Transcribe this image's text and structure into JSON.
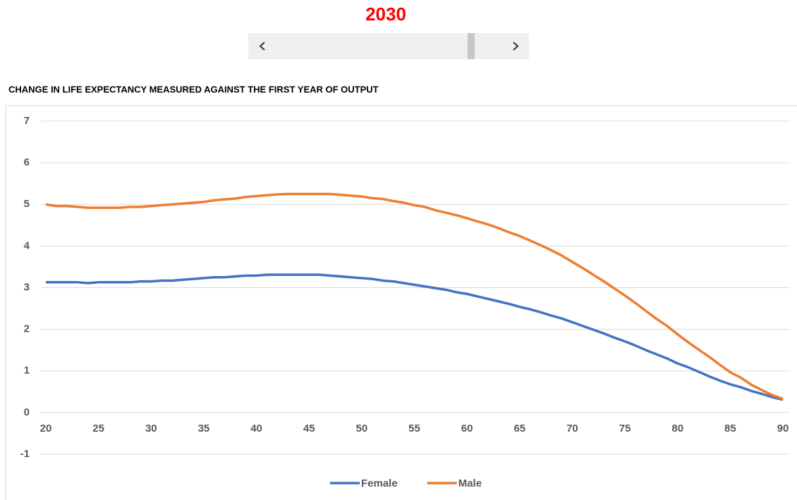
{
  "slider": {
    "label": "2030"
  },
  "chart_data": {
    "type": "line",
    "title": "CHANGE IN LIFE EXPECTANCY MEASURED AGAINST THE FIRST YEAR OF OUTPUT",
    "x": [
      20,
      21,
      22,
      23,
      24,
      25,
      26,
      27,
      28,
      29,
      30,
      31,
      32,
      33,
      34,
      35,
      36,
      37,
      38,
      39,
      40,
      41,
      42,
      43,
      44,
      45,
      46,
      47,
      48,
      49,
      50,
      51,
      52,
      53,
      54,
      55,
      56,
      57,
      58,
      59,
      60,
      61,
      62,
      63,
      64,
      65,
      66,
      67,
      68,
      69,
      70,
      71,
      72,
      73,
      74,
      75,
      76,
      77,
      78,
      79,
      80,
      81,
      82,
      83,
      84,
      85,
      86,
      87,
      88,
      89,
      90
    ],
    "series": [
      {
        "name": "Female",
        "color": "#4472c4",
        "values": [
          3.13,
          3.13,
          3.13,
          3.13,
          3.11,
          3.13,
          3.13,
          3.13,
          3.13,
          3.15,
          3.15,
          3.17,
          3.17,
          3.19,
          3.21,
          3.23,
          3.25,
          3.25,
          3.27,
          3.29,
          3.29,
          3.31,
          3.31,
          3.31,
          3.31,
          3.31,
          3.31,
          3.29,
          3.27,
          3.25,
          3.23,
          3.21,
          3.17,
          3.15,
          3.11,
          3.07,
          3.03,
          2.99,
          2.95,
          2.89,
          2.85,
          2.79,
          2.73,
          2.67,
          2.61,
          2.54,
          2.48,
          2.41,
          2.33,
          2.26,
          2.17,
          2.08,
          1.99,
          1.9,
          1.8,
          1.71,
          1.61,
          1.5,
          1.4,
          1.3,
          1.18,
          1.09,
          0.98,
          0.87,
          0.77,
          0.68,
          0.61,
          0.52,
          0.45,
          0.37,
          0.31
        ]
      },
      {
        "name": "Male",
        "color": "#ed7d31",
        "values": [
          5.0,
          4.96,
          4.96,
          4.94,
          4.92,
          4.92,
          4.92,
          4.92,
          4.94,
          4.94,
          4.96,
          4.98,
          5.0,
          5.02,
          5.04,
          5.06,
          5.1,
          5.12,
          5.14,
          5.18,
          5.2,
          5.22,
          5.24,
          5.25,
          5.25,
          5.25,
          5.25,
          5.25,
          5.23,
          5.21,
          5.19,
          5.15,
          5.13,
          5.08,
          5.04,
          4.98,
          4.94,
          4.86,
          4.8,
          4.74,
          4.67,
          4.59,
          4.52,
          4.43,
          4.33,
          4.24,
          4.13,
          4.02,
          3.9,
          3.77,
          3.62,
          3.47,
          3.31,
          3.15,
          2.98,
          2.81,
          2.63,
          2.44,
          2.25,
          2.08,
          1.88,
          1.69,
          1.51,
          1.34,
          1.15,
          0.97,
          0.84,
          0.67,
          0.54,
          0.42,
          0.33
        ]
      }
    ],
    "xlim": [
      20,
      90
    ],
    "xticks": [
      20,
      25,
      30,
      35,
      40,
      45,
      50,
      55,
      60,
      65,
      70,
      75,
      80,
      85,
      90
    ],
    "ylim": [
      -1,
      7
    ],
    "yticks": [
      -1,
      0,
      1,
      2,
      3,
      4,
      5,
      6,
      7
    ],
    "grid": true,
    "legend": "bottom"
  }
}
